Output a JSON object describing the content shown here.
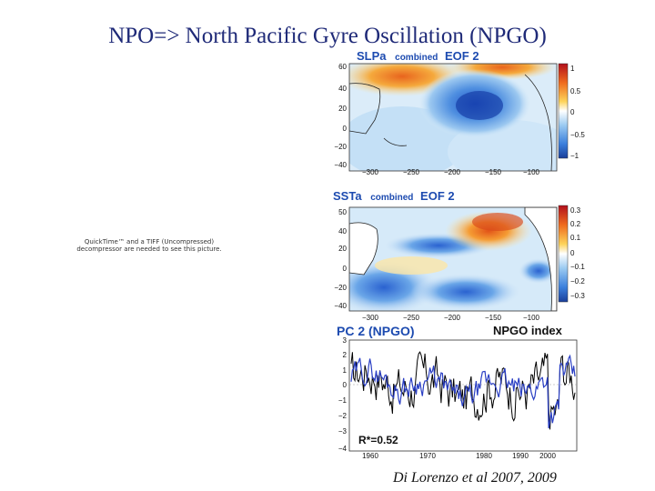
{
  "slide": {
    "title": "NPO=> North Pacific Gyre Oscillation (NPGO)",
    "qt_notice": "QuickTime™ and a TIFF (Uncompressed) decompressor are needed to see this picture.",
    "citation": "Di Lorenzo et al 2007, 2009"
  },
  "panels": {
    "slpa": {
      "title_main": "SLPa",
      "title_mid": "combined",
      "title_end": "EOF 2",
      "y_ticks": [
        "60",
        "40",
        "20",
        "0",
        "−20",
        "−40"
      ],
      "x_ticks": [
        "−300",
        "−250",
        "−200",
        "−150",
        "−100"
      ],
      "colorbar_ticks": [
        "1",
        "0.5",
        "0",
        "−0.5",
        "−1"
      ]
    },
    "ssta": {
      "title_main": "SSTa",
      "title_mid": "combined",
      "title_end": "EOF 2",
      "y_ticks": [
        "50",
        "40",
        "20",
        "0",
        "−20",
        "−40"
      ],
      "x_ticks": [
        "−300",
        "−250",
        "−200",
        "−150",
        "−100"
      ],
      "colorbar_ticks": [
        "0.3",
        "0.2",
        "0.1",
        "0",
        "−0.1",
        "−0.2",
        "−0.3"
      ]
    },
    "pc2": {
      "title": "PC 2 (NPGO)",
      "legend_title": "NPGO index",
      "y_ticks": [
        "3",
        "2",
        "1",
        "0",
        "−1",
        "−2",
        "−3",
        "−4"
      ],
      "x_ticks": [
        "1960",
        "1970",
        "1980",
        "1990",
        "2000"
      ],
      "annotation": "R*=0.52"
    }
  },
  "colors": {
    "title": "#1f2a78",
    "panel_title": "#1d4bb0",
    "series_black": "#000000",
    "series_blue": "#2a3fc4"
  }
}
